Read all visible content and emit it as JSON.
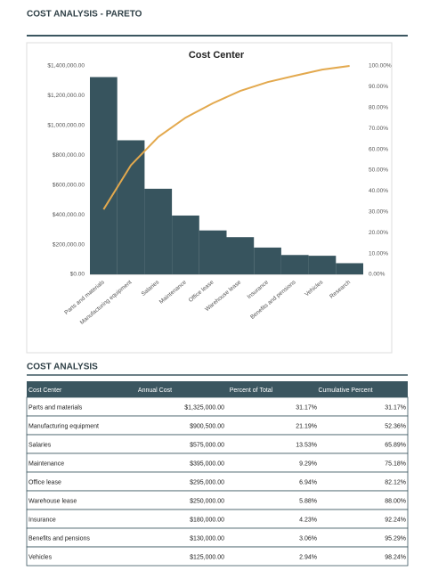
{
  "header": {
    "title": "COST ANALYSIS - PARETO"
  },
  "chart_data": {
    "type": "bar",
    "title": "Cost Center",
    "categories": [
      "Parts and materials",
      "Manufacturing equipment",
      "Salaries",
      "Maintenance",
      "Office lease",
      "Warehouse lease",
      "Insurance",
      "Benefits and pensions",
      "Vehicles",
      "Research"
    ],
    "series": [
      {
        "type": "bar",
        "color": "#37545e",
        "values": [
          1325000,
          900500,
          575000,
          395000,
          295000,
          250000,
          180000,
          130000,
          125000,
          75000
        ]
      },
      {
        "type": "line",
        "axis": "y2",
        "color": "#e3a94e",
        "values": [
          31.17,
          52.36,
          65.89,
          75.18,
          82.12,
          88.0,
          92.24,
          95.29,
          98.24,
          100.0
        ]
      }
    ],
    "ylim": [
      0,
      1400000
    ],
    "yticks": [
      {
        "value": 0,
        "label": "$0.00"
      },
      {
        "value": 200000,
        "label": "$200,000.00"
      },
      {
        "value": 400000,
        "label": "$400,000.00"
      },
      {
        "value": 600000,
        "label": "$600,000.00"
      },
      {
        "value": 800000,
        "label": "$800,000.00"
      },
      {
        "value": 1000000,
        "label": "$1,000,000.00"
      },
      {
        "value": 1200000,
        "label": "$1,200,000.00"
      },
      {
        "value": 1400000,
        "label": "$1,400,000.00"
      }
    ],
    "y2lim": [
      0,
      100
    ],
    "y2ticks": [
      {
        "value": 0,
        "label": "0.00%"
      },
      {
        "value": 10,
        "label": "10.00%"
      },
      {
        "value": 20,
        "label": "20.00%"
      },
      {
        "value": 30,
        "label": "30.00%"
      },
      {
        "value": 40,
        "label": "40.00%"
      },
      {
        "value": 50,
        "label": "50.00%"
      },
      {
        "value": 60,
        "label": "60.00%"
      },
      {
        "value": 70,
        "label": "70.00%"
      },
      {
        "value": 80,
        "label": "80.00%"
      },
      {
        "value": 90,
        "label": "90.00%"
      },
      {
        "value": 100,
        "label": "100.00%"
      }
    ],
    "grid": false
  },
  "table": {
    "title": "COST ANALYSIS",
    "columns": [
      "Cost Center",
      "Annual Cost",
      "Percent of Total",
      "Cumulative Percent"
    ],
    "rows": [
      [
        "Parts and materials",
        "$1,325,000.00",
        "31.17%",
        "31.17%"
      ],
      [
        "Manufacturing equipment",
        "$900,500.00",
        "21.19%",
        "52.36%"
      ],
      [
        "Salaries",
        "$575,000.00",
        "13.53%",
        "65.89%"
      ],
      [
        "Maintenance",
        "$395,000.00",
        "9.29%",
        "75.18%"
      ],
      [
        "Office lease",
        "$295,000.00",
        "6.94%",
        "82.12%"
      ],
      [
        "Warehouse lease",
        "$250,000.00",
        "5.88%",
        "88.00%"
      ],
      [
        "Insurance",
        "$180,000.00",
        "4.23%",
        "92.24%"
      ],
      [
        "Benefits and pensions",
        "$130,000.00",
        "3.06%",
        "95.29%"
      ],
      [
        "Vehicles",
        "$125,000.00",
        "2.94%",
        "98.24%"
      ]
    ]
  }
}
